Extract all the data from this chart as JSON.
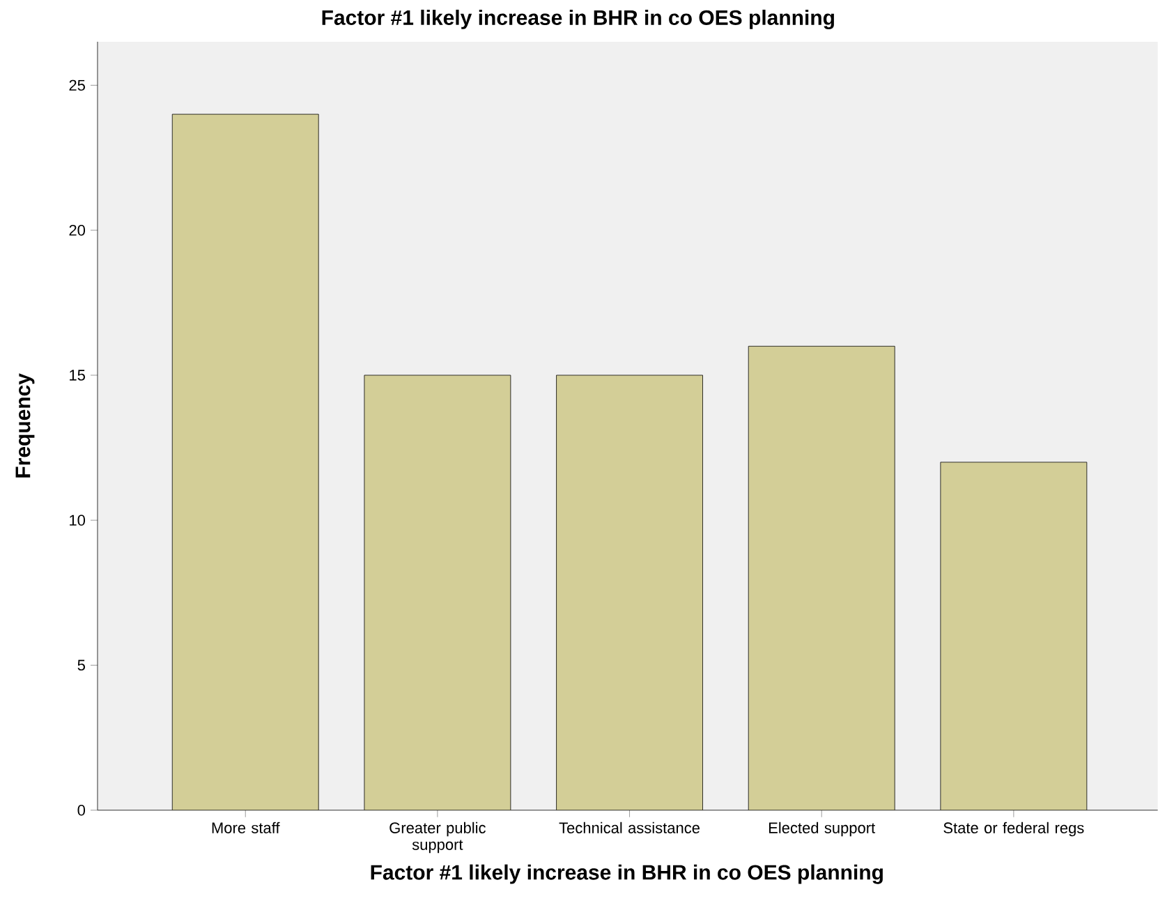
{
  "chart_data": {
    "type": "bar",
    "title": "Factor #1 likely increase in BHR in co OES planning",
    "xlabel": "Factor #1 likely increase in BHR in co OES planning",
    "ylabel": "Frequency",
    "categories": [
      "More staff",
      "Greater public support",
      "Technical assistance",
      "Elected support",
      "State or federal regs"
    ],
    "values": [
      24,
      15,
      15,
      16,
      12
    ],
    "color": "#d3ce97",
    "ylim": [
      0,
      26.5
    ],
    "yticks": [
      0,
      5,
      10,
      15,
      20,
      25
    ],
    "grid": false
  }
}
